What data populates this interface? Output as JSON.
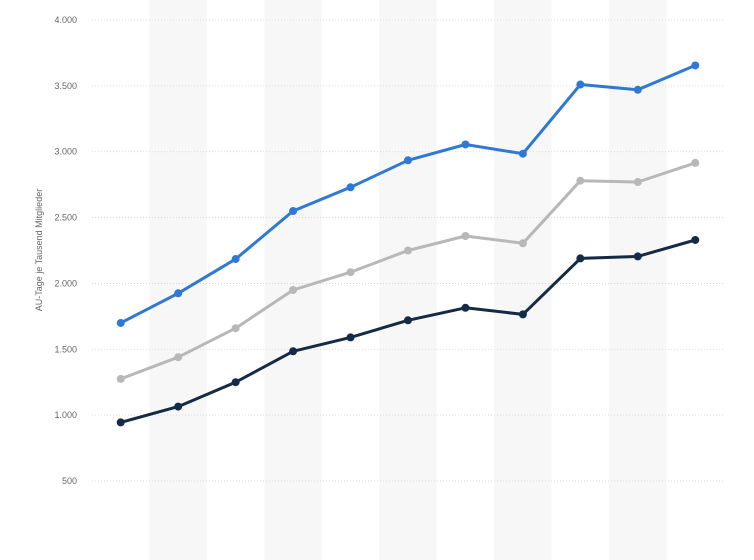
{
  "chart_data": {
    "type": "line",
    "title": "",
    "xlabel": "",
    "ylabel": "AU-Tage je Tausend Mitglieder",
    "ylim": [
      500,
      4000
    ],
    "yticks": [
      500,
      1000,
      1500,
      2000,
      2500,
      3000,
      3500,
      4000
    ],
    "ytick_labels": [
      "500",
      "1.000",
      "1.500",
      "2.000",
      "2.500",
      "3.000",
      "3.500",
      "4.000"
    ],
    "grid": true,
    "x": [
      1,
      2,
      3,
      4,
      5,
      6,
      7,
      8,
      9,
      10,
      11
    ],
    "series": [
      {
        "values": [
          1700,
          1925,
          2185,
          2550,
          2730,
          2935,
          3055,
          2985,
          3510,
          3470,
          3655
        ],
        "color": "#2e78d6"
      },
      {
        "values": [
          1275,
          1440,
          1660,
          1950,
          2085,
          2250,
          2360,
          2305,
          2780,
          2770,
          2915
        ],
        "color": "#b8b8b8"
      },
      {
        "values": [
          945,
          1065,
          1250,
          1485,
          1590,
          1720,
          1815,
          1765,
          2190,
          2205,
          2330
        ],
        "color": "#152b45"
      }
    ]
  }
}
